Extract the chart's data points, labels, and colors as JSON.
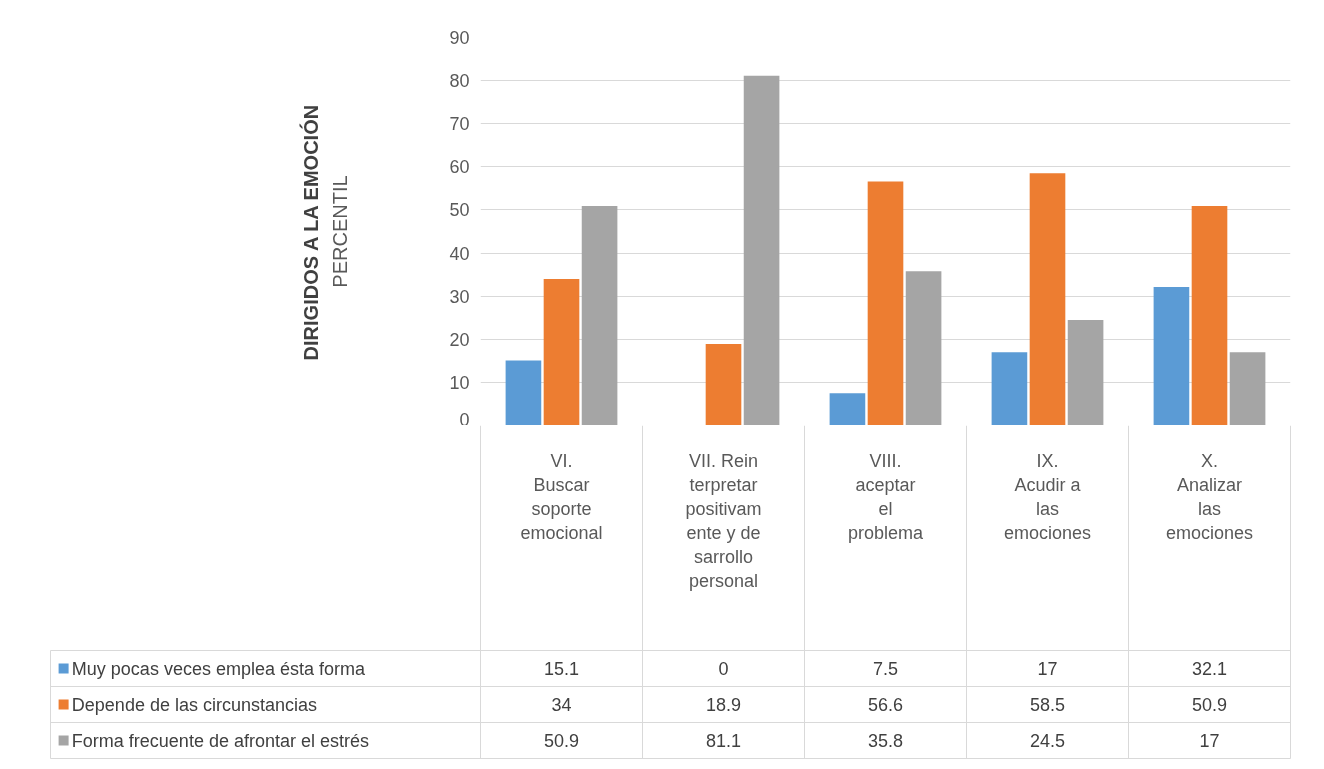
{
  "chart_data": {
    "type": "bar",
    "title": "DIRIGIDOS A LA EMOCIÓN",
    "ylabel": "PERCENTIL",
    "categories": [
      "VI. Buscar soporte emocional",
      "VII. Reinterpretar positivamente y desarrollo personal",
      "VIII. aceptar el problema",
      "IX. Acudir a las emociones",
      "X. Analizar las emociones"
    ],
    "series": [
      {
        "name": "Muy pocas veces emplea ésta forma",
        "color": "#5b9bd5",
        "values": [
          15.1,
          0,
          7.5,
          17,
          32.1
        ]
      },
      {
        "name": "Depende de las circunstancias",
        "color": "#ed7d31",
        "values": [
          34,
          18.9,
          56.6,
          58.5,
          50.9
        ]
      },
      {
        "name": "Forma frecuente de afrontar el estrés",
        "color": "#a5a5a5",
        "values": [
          50.9,
          81.1,
          35.8,
          24.5,
          17
        ]
      }
    ],
    "ylim": [
      0,
      90
    ],
    "yticks": [
      0,
      10,
      20,
      30,
      40,
      50,
      60,
      70,
      80,
      90
    ],
    "grid": "y",
    "legend": "bottom",
    "data_labels": true
  }
}
